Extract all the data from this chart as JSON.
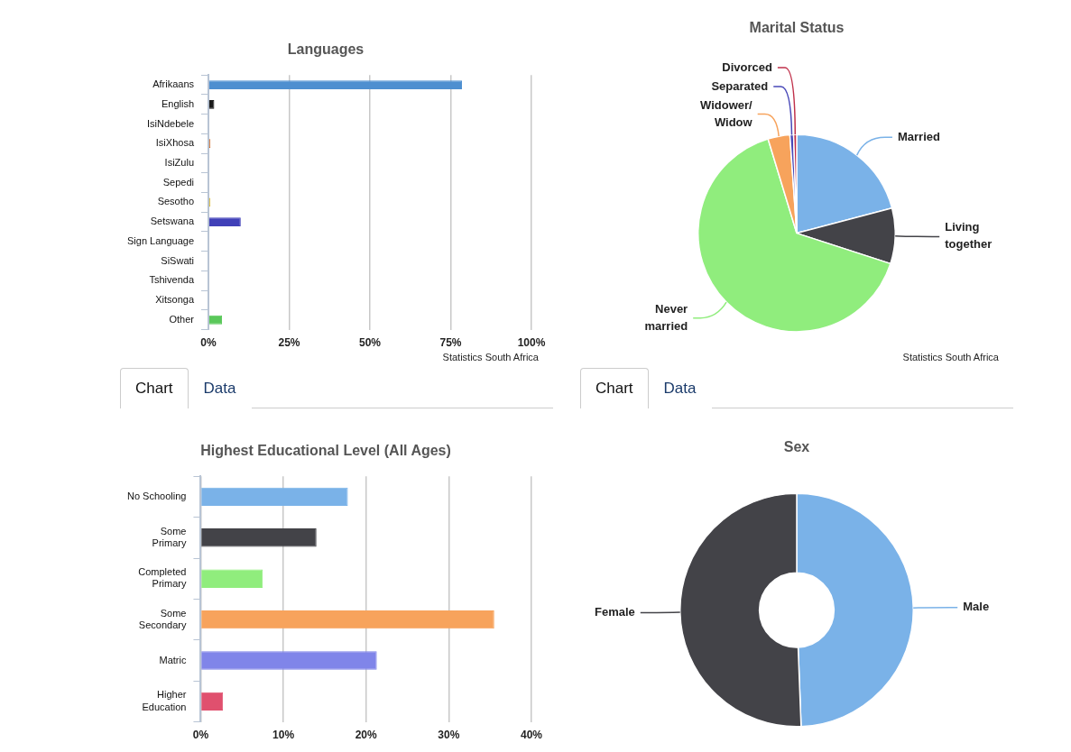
{
  "chart_data": [
    {
      "type": "bar",
      "orientation": "horizontal",
      "title": "Languages",
      "categories": [
        "Afrikaans",
        "English",
        "IsiNdebele",
        "IsiXhosa",
        "IsiZulu",
        "Sepedi",
        "Sesotho",
        "Setswana",
        "Sign Language",
        "SiSwati",
        "Tshivenda",
        "Xitsonga",
        "Other"
      ],
      "values": [
        78.5,
        1.8,
        0,
        0.6,
        0,
        0,
        0.6,
        10,
        0,
        0,
        0,
        0,
        4.2
      ],
      "colors": [
        "#4e8fd0",
        "#1a1a1a",
        "#7cb5ec",
        "#c8601a",
        "#8085e9",
        "#f15c80",
        "#d4b020",
        "#4040b8",
        "#f45b5b",
        "#91e8e1",
        "#2b908f",
        "#434348",
        "#5ac85a"
      ],
      "xlim": [
        0,
        100
      ],
      "xticks": [
        {
          "value": 0,
          "label": "0%"
        },
        {
          "value": 25,
          "label": "25%"
        },
        {
          "value": 50,
          "label": "50%"
        },
        {
          "value": 75,
          "label": "75%"
        },
        {
          "value": 100,
          "label": "100%"
        }
      ],
      "grid": "x",
      "legend": false,
      "annotations": [
        "Statistics South Africa",
        "Chart",
        "Data"
      ]
    },
    {
      "type": "pie",
      "title": "Marital Status",
      "categories": [
        "Married",
        "Living together",
        "Never married",
        "Widower/ Widow",
        "Separated",
        "Divorced"
      ],
      "values": [
        20.9,
        9.1,
        65.3,
        3.6,
        0.6,
        0.5
      ],
      "colors": [
        "#7ab2e8",
        "#434348",
        "#90ed7d",
        "#f7a35c",
        "#4848b8",
        "#c0304a"
      ],
      "legend": false,
      "annotations": [
        "Statistics South Africa",
        "Chart",
        "Data"
      ]
    },
    {
      "type": "bar",
      "orientation": "horizontal",
      "title": "Highest Educational Level (All Ages)",
      "categories": [
        "No Schooling",
        "Some Primary",
        "Completed Primary",
        "Some Secondary",
        "Matric",
        "Higher Education"
      ],
      "values": [
        17.8,
        14,
        7.5,
        35.5,
        21.3,
        2.7
      ],
      "colors": [
        "#7ab2e8",
        "#434348",
        "#90ed7d",
        "#f7a35c",
        "#8085e9",
        "#e0506e"
      ],
      "xlim": [
        0,
        40
      ],
      "xticks": [
        {
          "value": 0,
          "label": "0%"
        },
        {
          "value": 10,
          "label": "10%"
        },
        {
          "value": 20,
          "label": "20%"
        },
        {
          "value": 30,
          "label": "30%"
        },
        {
          "value": 40,
          "label": "40%"
        }
      ],
      "grid": "x",
      "legend": false
    },
    {
      "type": "donut",
      "title": "Sex",
      "categories": [
        "Male",
        "Female"
      ],
      "values": [
        49.4,
        50.6
      ],
      "colors": [
        "#7ab2e8",
        "#434348"
      ],
      "legend": false
    }
  ]
}
